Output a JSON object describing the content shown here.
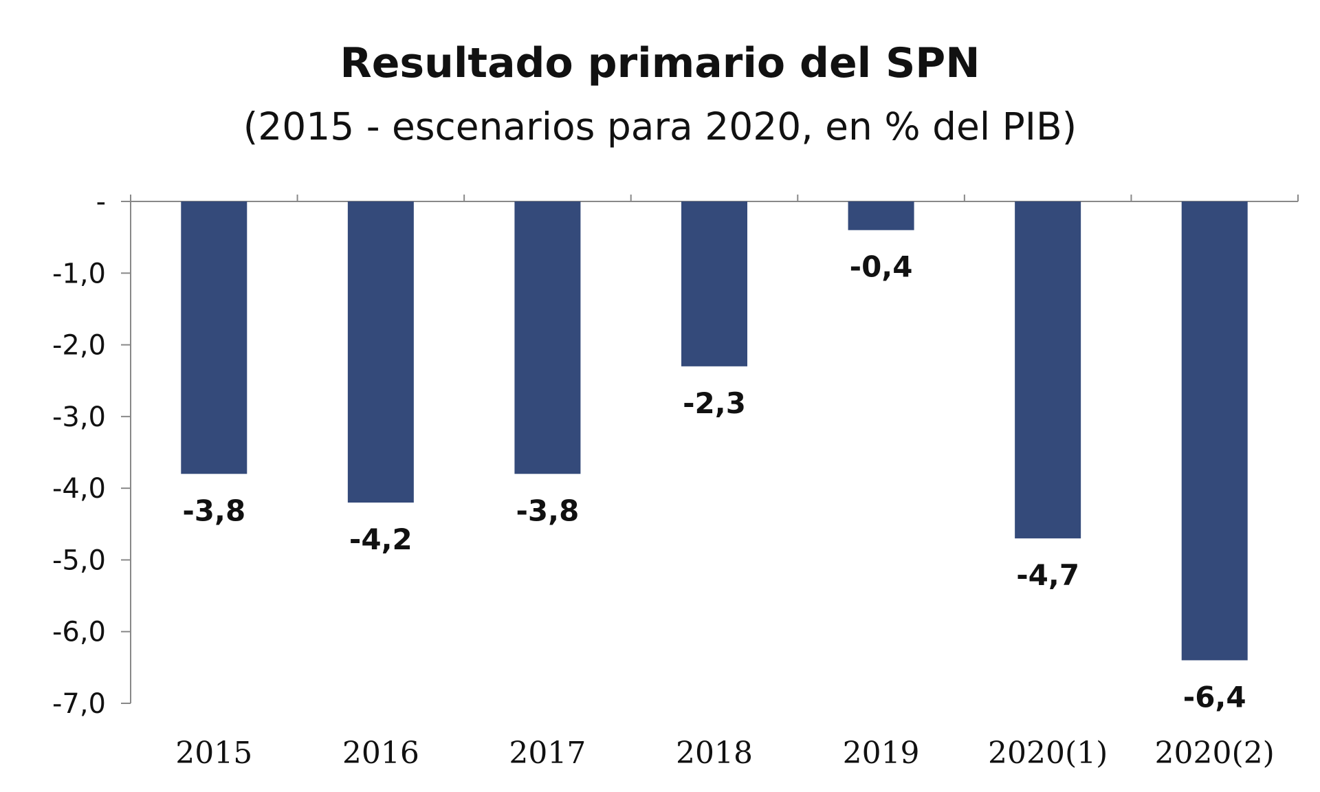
{
  "chart_data": {
    "type": "bar",
    "title": "Resultado primario del SPN",
    "subtitle": "(2015 - escenarios para 2020, en % del PIB)",
    "categories": [
      "2015",
      "2016",
      "2017",
      "2018",
      "2019",
      "2020(1)",
      "2020(2)"
    ],
    "values": [
      -3.8,
      -4.2,
      -3.8,
      -2.3,
      -0.4,
      -4.7,
      -6.4
    ],
    "value_labels": [
      "-3,8",
      "-4,2",
      "-3,8",
      "-2,3",
      "-0,4",
      "-4,7",
      "-6,4"
    ],
    "yticks": [
      0,
      -1,
      -2,
      -3,
      -4,
      -5,
      -6,
      -7
    ],
    "ytick_labels": [
      "-",
      "-1,0",
      "-2,0",
      "-3,0",
      "-4,0",
      "-5,0",
      "-6,0",
      "-7,0"
    ],
    "ylim": [
      -7,
      0
    ],
    "xlabel": "",
    "ylabel": "",
    "grid": false,
    "bar_color": "#344A7A"
  }
}
